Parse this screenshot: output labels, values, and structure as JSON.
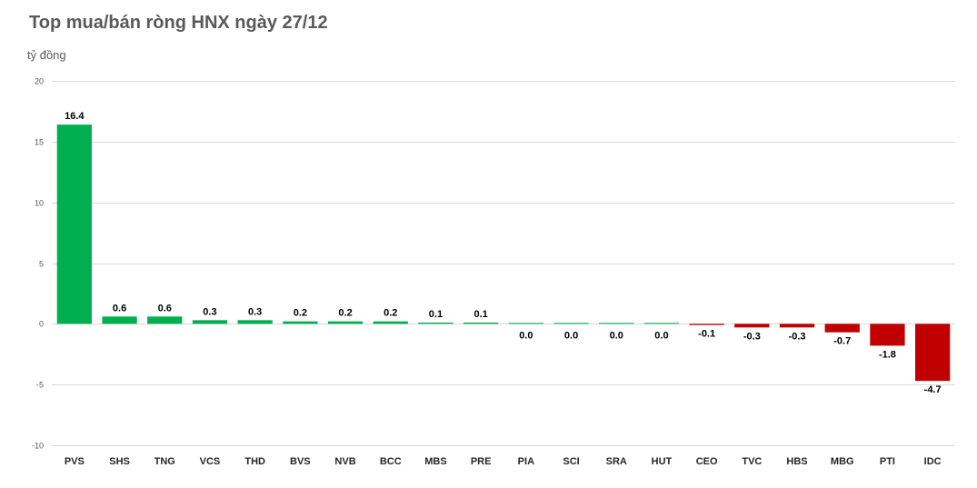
{
  "title": "Top mua/bán ròng HNX ngày 27/12",
  "unit_label": "tỷ đồng",
  "colors": {
    "positive": "#00b050",
    "negative": "#c00000",
    "grid": "#d9d9d9"
  },
  "chart_data": {
    "type": "bar",
    "title": "Top mua/bán ròng HNX ngày 27/12",
    "ylabel": "tỷ đồng",
    "xlabel": "",
    "ylim": [
      -10,
      20
    ],
    "yticks": [
      20,
      15,
      10,
      5,
      0,
      -5,
      -10
    ],
    "grid": true,
    "legend": "none",
    "categories": [
      "PVS",
      "SHS",
      "TNG",
      "VCS",
      "THD",
      "BVS",
      "NVB",
      "BCC",
      "MBS",
      "PRE",
      "PIA",
      "SCI",
      "SRA",
      "HUT",
      "CEO",
      "TVC",
      "HBS",
      "MBG",
      "PTI",
      "IDC"
    ],
    "values": [
      16.4,
      0.6,
      0.6,
      0.3,
      0.3,
      0.2,
      0.2,
      0.2,
      0.1,
      0.1,
      0.02,
      0.02,
      0.01,
      0.01,
      -0.1,
      -0.3,
      -0.3,
      -0.7,
      -1.8,
      -4.7
    ],
    "data_labels": [
      "16.4",
      "0.6",
      "0.6",
      "0.3",
      "0.3",
      "0.2",
      "0.2",
      "0.2",
      "0.1",
      "0.1",
      "0.0",
      "0.0",
      "0.0",
      "0.0",
      "-0.1",
      "-0.3",
      "-0.3",
      "-0.7",
      "-1.8",
      "-4.7"
    ]
  }
}
